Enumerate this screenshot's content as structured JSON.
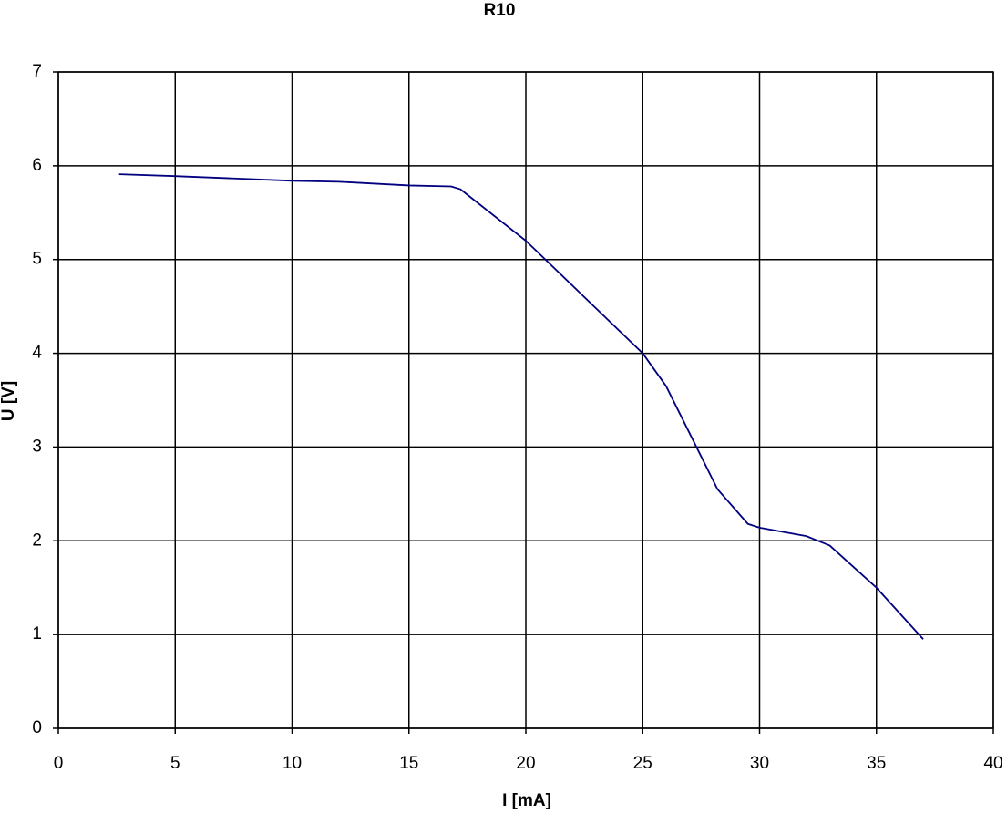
{
  "chart_data": {
    "type": "line",
    "title": "R10",
    "xlabel": "I [mA]",
    "ylabel": "U [V]",
    "x": [
      2.6,
      5,
      10,
      12,
      15,
      16.8,
      17.2,
      20,
      22.5,
      25,
      26,
      27.3,
      28.2,
      29.5,
      30,
      32,
      33,
      35,
      37
    ],
    "values": [
      5.91,
      5.89,
      5.84,
      5.83,
      5.79,
      5.78,
      5.75,
      5.2,
      4.6,
      4.0,
      3.65,
      3.0,
      2.55,
      2.18,
      2.14,
      2.05,
      1.95,
      1.5,
      0.95
    ],
    "color": "#000080",
    "xlim": [
      0,
      40
    ],
    "xticks": [
      0,
      5,
      10,
      15,
      20,
      25,
      30,
      35,
      40
    ],
    "ylim": [
      0,
      7
    ],
    "yticks": [
      0,
      1,
      2,
      3,
      4,
      5,
      6,
      7
    ],
    "grid": true
  }
}
